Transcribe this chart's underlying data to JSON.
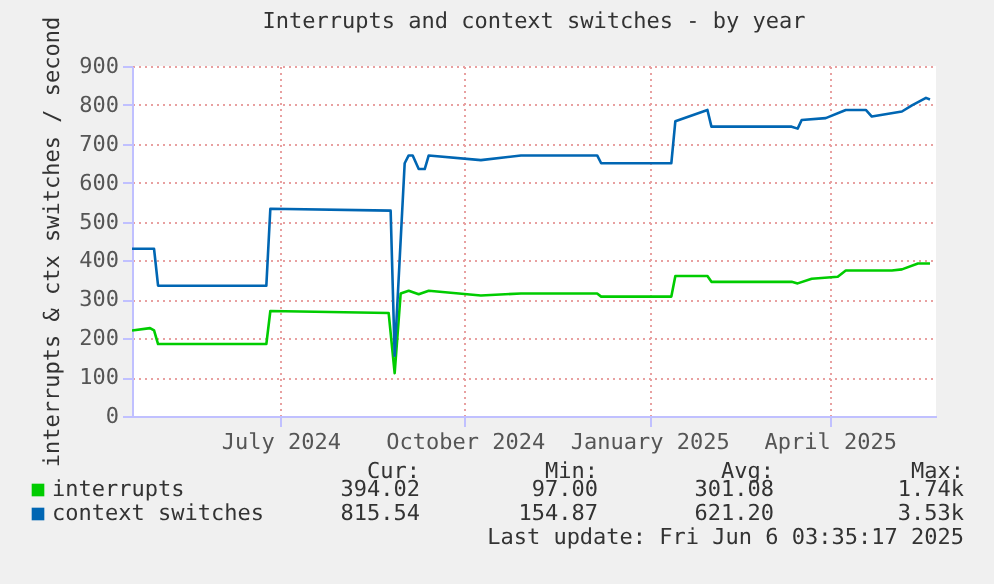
{
  "chart_data": {
    "type": "line",
    "title": "Interrupts and context switches - by year",
    "ylabel": "interrupts & ctx switches / second",
    "xlim": [
      "2024-05-03",
      "2025-06-08"
    ],
    "xticks": [
      {
        "value": "2024-07-16",
        "label": "July 2024"
      },
      {
        "value": "2024-10-16",
        "label": "October 2024"
      },
      {
        "value": "2025-01-16",
        "label": "January 2025"
      },
      {
        "value": "2025-04-16",
        "label": "April 2025"
      }
    ],
    "ylim": [
      0,
      900
    ],
    "yticks": [
      0,
      100,
      200,
      300,
      400,
      500,
      600,
      700,
      800,
      900
    ],
    "grid": true,
    "legend": "bottom",
    "marker": "none",
    "line_style": "solid",
    "series": [
      {
        "name": "interrupts",
        "color": "#00cc00",
        "x": [
          "2024-05-03",
          "2024-05-12",
          "2024-05-14",
          "2024-05-16",
          "2024-07-09",
          "2024-07-11",
          "2024-09-08",
          "2024-09-11",
          "2024-09-14",
          "2024-09-18",
          "2024-09-23",
          "2024-09-28",
          "2024-10-24",
          "2024-11-13",
          "2024-12-21",
          "2024-12-23",
          "2025-01-27",
          "2025-01-29",
          "2025-02-14",
          "2025-02-16",
          "2025-03-28",
          "2025-03-31",
          "2025-04-07",
          "2025-04-20",
          "2025-04-24",
          "2025-05-17",
          "2025-05-22",
          "2025-05-30",
          "2025-06-05"
        ],
        "values": [
          220,
          226,
          220,
          185,
          185,
          270,
          265,
          110,
          315,
          322,
          313,
          322,
          310,
          315,
          315,
          307,
          307,
          360,
          360,
          345,
          345,
          341,
          353,
          358,
          374,
          374,
          377,
          392,
          392
        ]
      },
      {
        "name": "context switches",
        "color": "#0066b3",
        "x": [
          "2024-05-03",
          "2024-05-14",
          "2024-05-16",
          "2024-07-09",
          "2024-07-11",
          "2024-09-09",
          "2024-09-11",
          "2024-09-16",
          "2024-09-18",
          "2024-09-20",
          "2024-09-23",
          "2024-09-26",
          "2024-09-28",
          "2024-10-24",
          "2024-11-13",
          "2024-12-21",
          "2024-12-23",
          "2025-01-27",
          "2025-01-29",
          "2025-02-14",
          "2025-02-16",
          "2025-03-28",
          "2025-03-31",
          "2025-04-02",
          "2025-04-14",
          "2025-04-24",
          "2025-05-04",
          "2025-05-07",
          "2025-05-22",
          "2025-05-27",
          "2025-06-03",
          "2025-06-05"
        ],
        "values": [
          430,
          430,
          335,
          335,
          533,
          528,
          155,
          650,
          670,
          670,
          635,
          635,
          670,
          658,
          670,
          670,
          650,
          650,
          758,
          787,
          744,
          744,
          739,
          761,
          766,
          787,
          787,
          770,
          783,
          799,
          818,
          814
        ]
      }
    ],
    "annotations": [
      "Cur:",
      "Min:",
      "Avg:",
      "Max:",
      "394.02",
      "97.00",
      "301.08",
      "1.74k",
      "815.54",
      "154.87",
      "621.20",
      "3.53k",
      "Last update: Fri Jun  6 03:35:17 2025"
    ]
  }
}
